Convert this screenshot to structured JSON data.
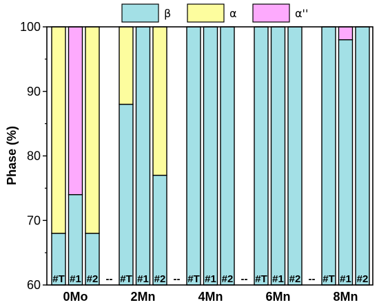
{
  "chart_data": {
    "type": "bar",
    "stacked": true,
    "ylabel": "Phase (%)",
    "ylim": [
      60,
      100
    ],
    "yticks": [
      "60",
      "70",
      "80",
      "90",
      "100"
    ],
    "legend": {
      "placement": "top",
      "entries": [
        {
          "name": "β",
          "color": "#a3e0e6"
        },
        {
          "name": "α",
          "color": "#fdfd9e"
        },
        {
          "name": "α''",
          "color": "#fdaafd"
        }
      ]
    },
    "separator_label": "--",
    "groups": [
      {
        "name": "0Mo",
        "bars": [
          {
            "label": "#T",
            "beta": 68,
            "alpha": 32,
            "alpha2": 0
          },
          {
            "label": "#1",
            "beta": 74,
            "alpha": 0,
            "alpha2": 26
          },
          {
            "label": "#2",
            "beta": 68,
            "alpha": 32,
            "alpha2": 0
          }
        ]
      },
      {
        "name": "2Mn",
        "bars": [
          {
            "label": "#T",
            "beta": 88,
            "alpha": 12,
            "alpha2": 0
          },
          {
            "label": "#1",
            "beta": 100,
            "alpha": 0,
            "alpha2": 0
          },
          {
            "label": "#2",
            "beta": 77,
            "alpha": 23,
            "alpha2": 0
          }
        ]
      },
      {
        "name": "4Mn",
        "bars": [
          {
            "label": "#T",
            "beta": 100,
            "alpha": 0,
            "alpha2": 0
          },
          {
            "label": "#1",
            "beta": 100,
            "alpha": 0,
            "alpha2": 0
          },
          {
            "label": "#2",
            "beta": 100,
            "alpha": 0,
            "alpha2": 0
          }
        ]
      },
      {
        "name": "6Mn",
        "bars": [
          {
            "label": "#T",
            "beta": 100,
            "alpha": 0,
            "alpha2": 0
          },
          {
            "label": "#1",
            "beta": 100,
            "alpha": 0,
            "alpha2": 0
          },
          {
            "label": "#2",
            "beta": 100,
            "alpha": 0,
            "alpha2": 0
          }
        ]
      },
      {
        "name": "8Mn",
        "bars": [
          {
            "label": "#T",
            "beta": 100,
            "alpha": 0,
            "alpha2": 0
          },
          {
            "label": "#1",
            "beta": 98,
            "alpha": 0,
            "alpha2": 2
          },
          {
            "label": "#2",
            "beta": 100,
            "alpha": 0,
            "alpha2": 0
          }
        ]
      }
    ]
  }
}
